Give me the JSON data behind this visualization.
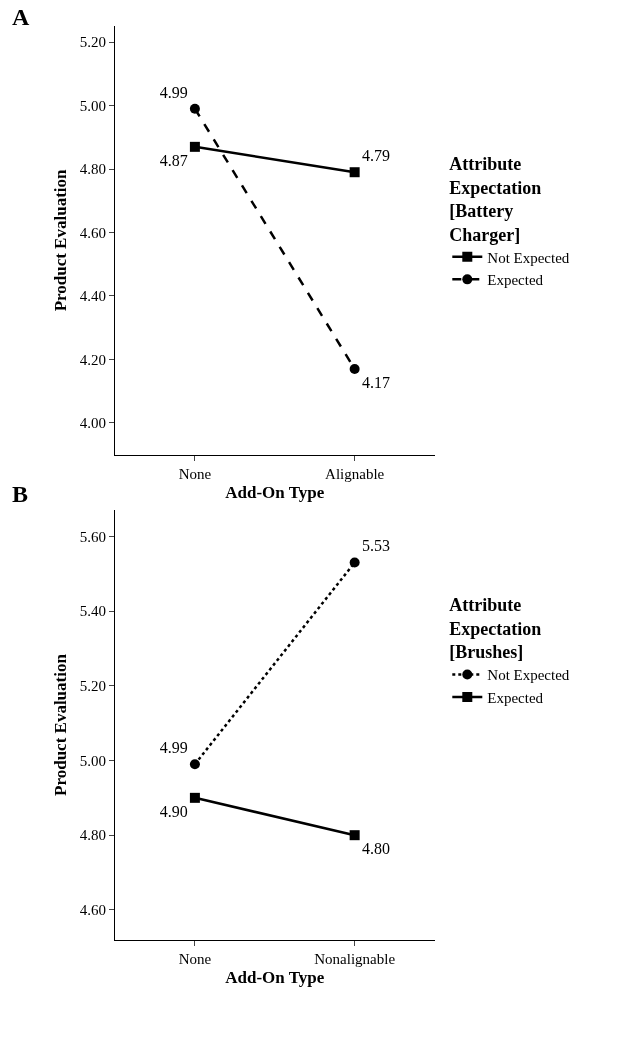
{
  "chart_data": [
    {
      "type": "line",
      "title": "A",
      "xlabel": "Add-On Type",
      "ylabel": "Product Evaluation",
      "categories": [
        "None",
        "Alignable"
      ],
      "ylim": [
        3.9,
        5.25
      ],
      "yticks": [
        {
          "value": 4.0,
          "label": "4.00"
        },
        {
          "value": 4.2,
          "label": "4.20"
        },
        {
          "value": 4.4,
          "label": "4.40"
        },
        {
          "value": 4.6,
          "label": "4.60"
        },
        {
          "value": 4.8,
          "label": "4.80"
        },
        {
          "value": 5.0,
          "label": "5.00"
        },
        {
          "value": 5.2,
          "label": "5.20"
        }
      ],
      "legend": "right",
      "legend_title": "Attribute Expectation [Battery Charger]",
      "series": [
        {
          "name": "Not Expected",
          "color": "#000000",
          "values": [
            4.87,
            4.79
          ],
          "value_labels": [
            "4.87",
            "4.79"
          ],
          "line_style": "solid",
          "marker": "square"
        },
        {
          "name": "Expected",
          "color": "#000000",
          "values": [
            4.99,
            4.17
          ],
          "value_labels": [
            "4.99",
            "4.17"
          ],
          "line_style": "dashed",
          "marker": "circle"
        }
      ]
    },
    {
      "type": "line",
      "title": "B",
      "xlabel": "Add-On Type",
      "ylabel": "Product Evaluation",
      "categories": [
        "None",
        "Nonalignable"
      ],
      "ylim": [
        4.52,
        5.67
      ],
      "yticks": [
        {
          "value": 4.6,
          "label": "4.60"
        },
        {
          "value": 4.8,
          "label": "4.80"
        },
        {
          "value": 5.0,
          "label": "5.00"
        },
        {
          "value": 5.2,
          "label": "5.20"
        },
        {
          "value": 5.4,
          "label": "5.40"
        },
        {
          "value": 5.6,
          "label": "5.60"
        }
      ],
      "legend": "right",
      "legend_title": "Attribute Expectation [Brushes]",
      "series": [
        {
          "name": "Not Expected",
          "color": "#000000",
          "values": [
            4.99,
            5.53
          ],
          "value_labels": [
            "4.99",
            "5.53"
          ],
          "line_style": "dotted",
          "marker": "circle"
        },
        {
          "name": "Expected",
          "color": "#000000",
          "values": [
            4.9,
            4.8
          ],
          "value_labels": [
            "4.90",
            "4.80"
          ],
          "line_style": "solid",
          "marker": "square"
        }
      ]
    }
  ]
}
